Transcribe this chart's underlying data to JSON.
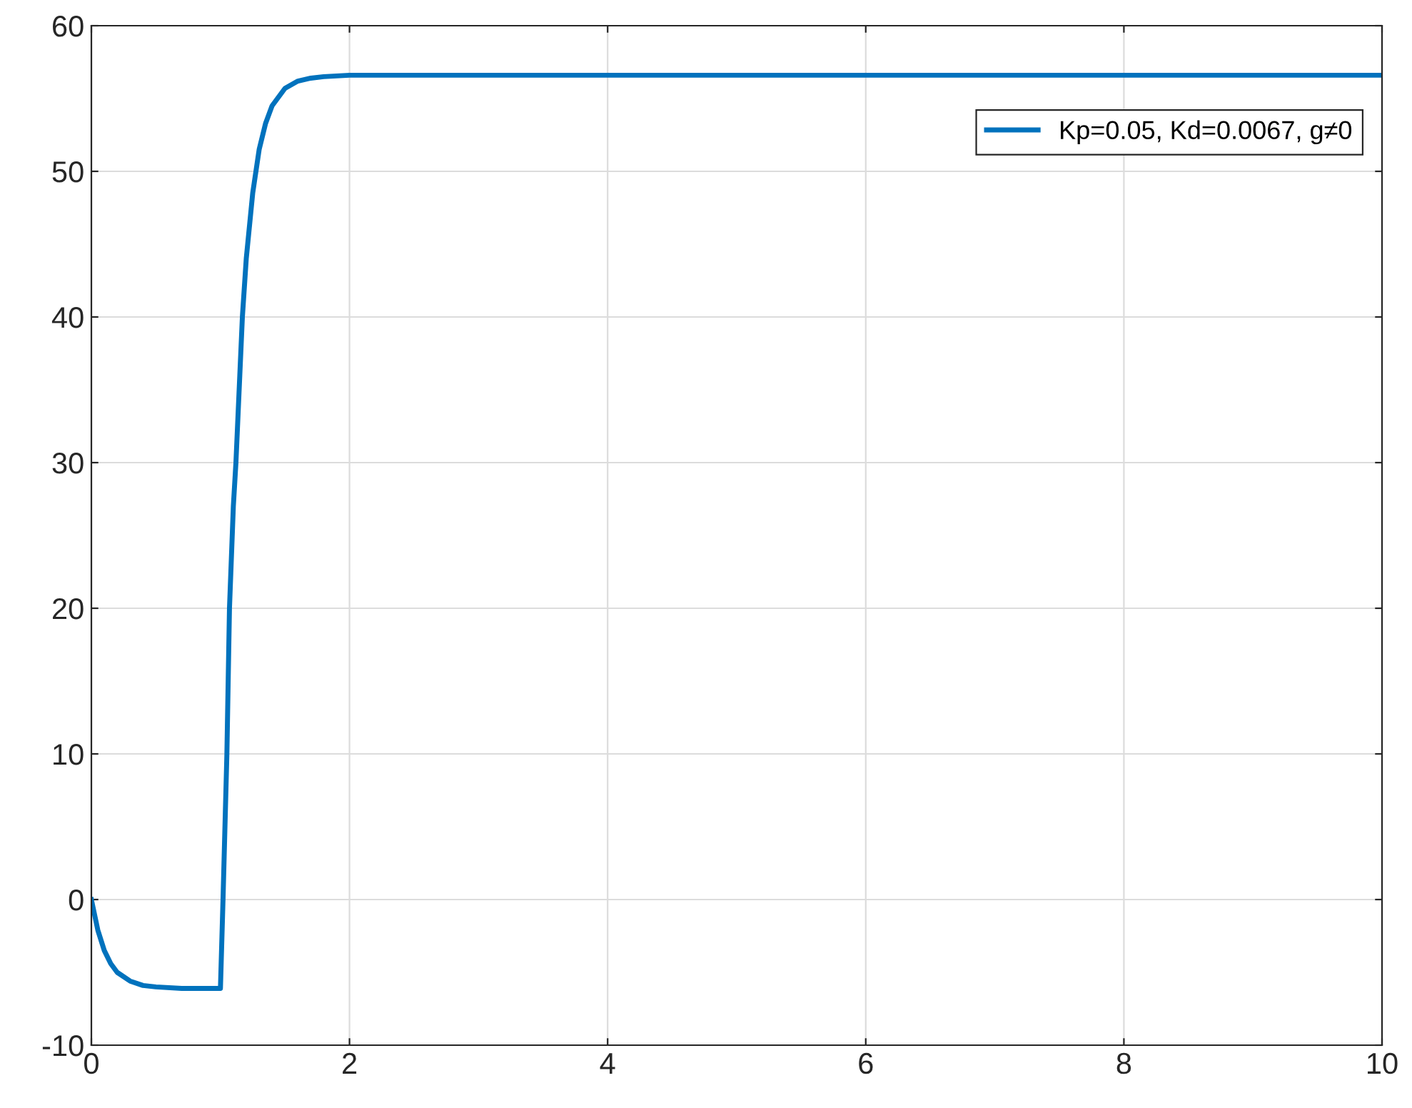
{
  "chart_data": {
    "type": "line",
    "series": [
      {
        "name": "Kp=0.05, Kd=0.0067, g≠0",
        "color": "#0072bd",
        "x": [
          0,
          0.05,
          0.1,
          0.15,
          0.2,
          0.3,
          0.4,
          0.5,
          0.7,
          1.0,
          1.02,
          1.05,
          1.07,
          1.1,
          1.12,
          1.15,
          1.17,
          1.2,
          1.25,
          1.3,
          1.35,
          1.4,
          1.5,
          1.6,
          1.7,
          1.8,
          2.0,
          3,
          4,
          6,
          8,
          10
        ],
        "values": [
          0,
          -2.1,
          -3.5,
          -4.4,
          -5.0,
          -5.6,
          -5.9,
          -6.0,
          -6.1,
          -6.1,
          0,
          10,
          20,
          27,
          30,
          36,
          40,
          44,
          48.5,
          51.5,
          53.3,
          54.5,
          55.7,
          56.2,
          56.4,
          56.5,
          56.6,
          56.6,
          56.6,
          56.6,
          56.6,
          56.6
        ]
      }
    ],
    "xlim": [
      0,
      10
    ],
    "xticks": [
      0,
      2,
      4,
      6,
      8,
      10
    ],
    "ylim": [
      -10,
      60
    ],
    "yticks": [
      -10,
      0,
      10,
      20,
      30,
      40,
      50,
      60
    ],
    "grid": true,
    "legend": "top right",
    "line_style": "solid",
    "marker": "none"
  }
}
